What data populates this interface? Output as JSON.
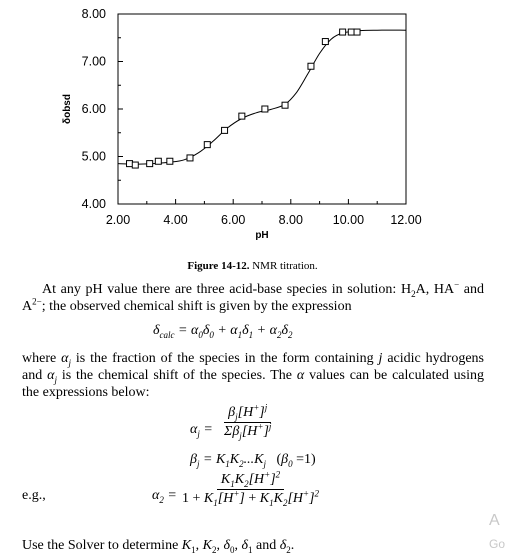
{
  "chart_data": {
    "type": "scatter",
    "x_ticks": [
      "2.00",
      "4.00",
      "6.00",
      "8.00",
      "10.00",
      "12.00"
    ],
    "y_ticks": [
      "4.00",
      "5.00",
      "6.00",
      "7.00",
      "8.00"
    ],
    "xlabel": "pH",
    "ylabel": "δobsd",
    "xlim": [
      2,
      12
    ],
    "ylim": [
      4,
      8
    ],
    "grid": false,
    "points": [
      {
        "x": 2.4,
        "y": 4.85
      },
      {
        "x": 2.6,
        "y": 4.82
      },
      {
        "x": 3.1,
        "y": 4.85
      },
      {
        "x": 3.4,
        "y": 4.9
      },
      {
        "x": 3.8,
        "y": 4.9
      },
      {
        "x": 4.5,
        "y": 4.97
      },
      {
        "x": 5.1,
        "y": 5.25
      },
      {
        "x": 5.7,
        "y": 5.55
      },
      {
        "x": 6.3,
        "y": 5.85
      },
      {
        "x": 7.1,
        "y": 6.0
      },
      {
        "x": 7.8,
        "y": 6.08
      },
      {
        "x": 8.7,
        "y": 6.9
      },
      {
        "x": 9.2,
        "y": 7.42
      },
      {
        "x": 9.8,
        "y": 7.62
      },
      {
        "x": 10.1,
        "y": 7.62
      },
      {
        "x": 10.3,
        "y": 7.62
      }
    ],
    "fit_curve": [
      {
        "x": 2.0,
        "y": 4.85
      },
      {
        "x": 2.6,
        "y": 4.84
      },
      {
        "x": 3.2,
        "y": 4.85
      },
      {
        "x": 3.8,
        "y": 4.88
      },
      {
        "x": 4.3,
        "y": 4.93
      },
      {
        "x": 4.8,
        "y": 5.08
      },
      {
        "x": 5.3,
        "y": 5.32
      },
      {
        "x": 5.8,
        "y": 5.6
      },
      {
        "x": 6.3,
        "y": 5.8
      },
      {
        "x": 6.8,
        "y": 5.92
      },
      {
        "x": 7.3,
        "y": 5.99
      },
      {
        "x": 7.8,
        "y": 6.1
      },
      {
        "x": 8.2,
        "y": 6.35
      },
      {
        "x": 8.6,
        "y": 6.75
      },
      {
        "x": 9.0,
        "y": 7.17
      },
      {
        "x": 9.4,
        "y": 7.47
      },
      {
        "x": 9.8,
        "y": 7.6
      },
      {
        "x": 10.4,
        "y": 7.65
      },
      {
        "x": 11.0,
        "y": 7.66
      },
      {
        "x": 12.0,
        "y": 7.66
      }
    ]
  },
  "caption": {
    "label": "Figure 14-12.",
    "text": "NMR titration."
  },
  "para1": {
    "t1": "At any pH value there are three acid-base species in solution: H",
    "t2": "A, HA",
    "t3": "and A",
    "t4": "; the observed chemical shift is given by the expression"
  },
  "para2": {
    "t1": "where ",
    "t2": " is the fraction of the species in the form containing ",
    "t3": " acidic hydrogens and ",
    "t4": " is the chemical shift of the species.  The ",
    "t5": " values can be calculated using the expressions below:"
  },
  "eg_label": "e.g.,",
  "final_line": {
    "t1": "Use the Solver to determine ",
    "t2": " and "
  },
  "watermark": {
    "line1": "A",
    "line2": "Go"
  }
}
